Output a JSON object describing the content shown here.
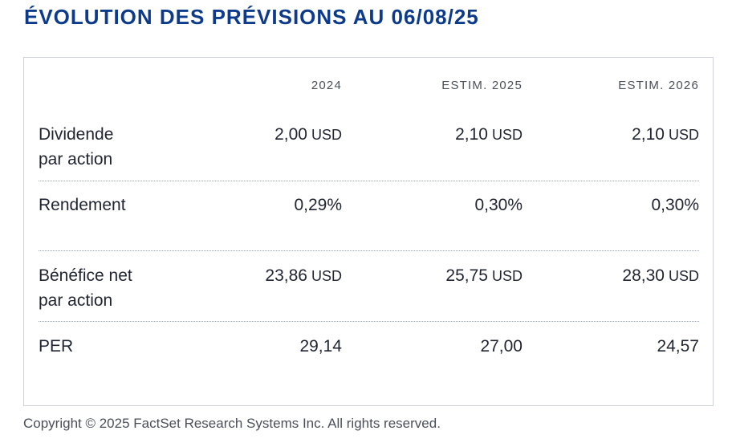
{
  "title": "ÉVOLUTION DES PRÉVISIONS AU 06/08/25",
  "table": {
    "columns": [
      "2024",
      "ESTIM. 2025",
      "ESTIM. 2026"
    ],
    "rows": [
      {
        "label_line1": "Dividende",
        "label_line2": "par action",
        "values": [
          {
            "num": "2,00",
            "unit": "USD"
          },
          {
            "num": "2,10",
            "unit": "USD"
          },
          {
            "num": "2,10",
            "unit": "USD"
          }
        ]
      },
      {
        "label_line1": "Rendement",
        "label_line2": "",
        "values": [
          {
            "num": "0,29%",
            "unit": ""
          },
          {
            "num": "0,30%",
            "unit": ""
          },
          {
            "num": "0,30%",
            "unit": ""
          }
        ]
      },
      {
        "label_line1": "Bénéfice net",
        "label_line2": "par action",
        "values": [
          {
            "num": "23,86",
            "unit": "USD"
          },
          {
            "num": "25,75",
            "unit": "USD"
          },
          {
            "num": "28,30",
            "unit": "USD"
          }
        ]
      },
      {
        "label_line1": "PER",
        "label_line2": "",
        "values": [
          {
            "num": "29,14",
            "unit": ""
          },
          {
            "num": "27,00",
            "unit": ""
          },
          {
            "num": "24,57",
            "unit": ""
          }
        ]
      }
    ]
  },
  "footer": {
    "copyright": "Copyright © 2025 FactSet Research Systems Inc. All rights reserved."
  },
  "colors": {
    "title": "#0d3b8c",
    "text": "#1f2430",
    "muted": "#4a4f58",
    "border": "#cfd3d9"
  }
}
